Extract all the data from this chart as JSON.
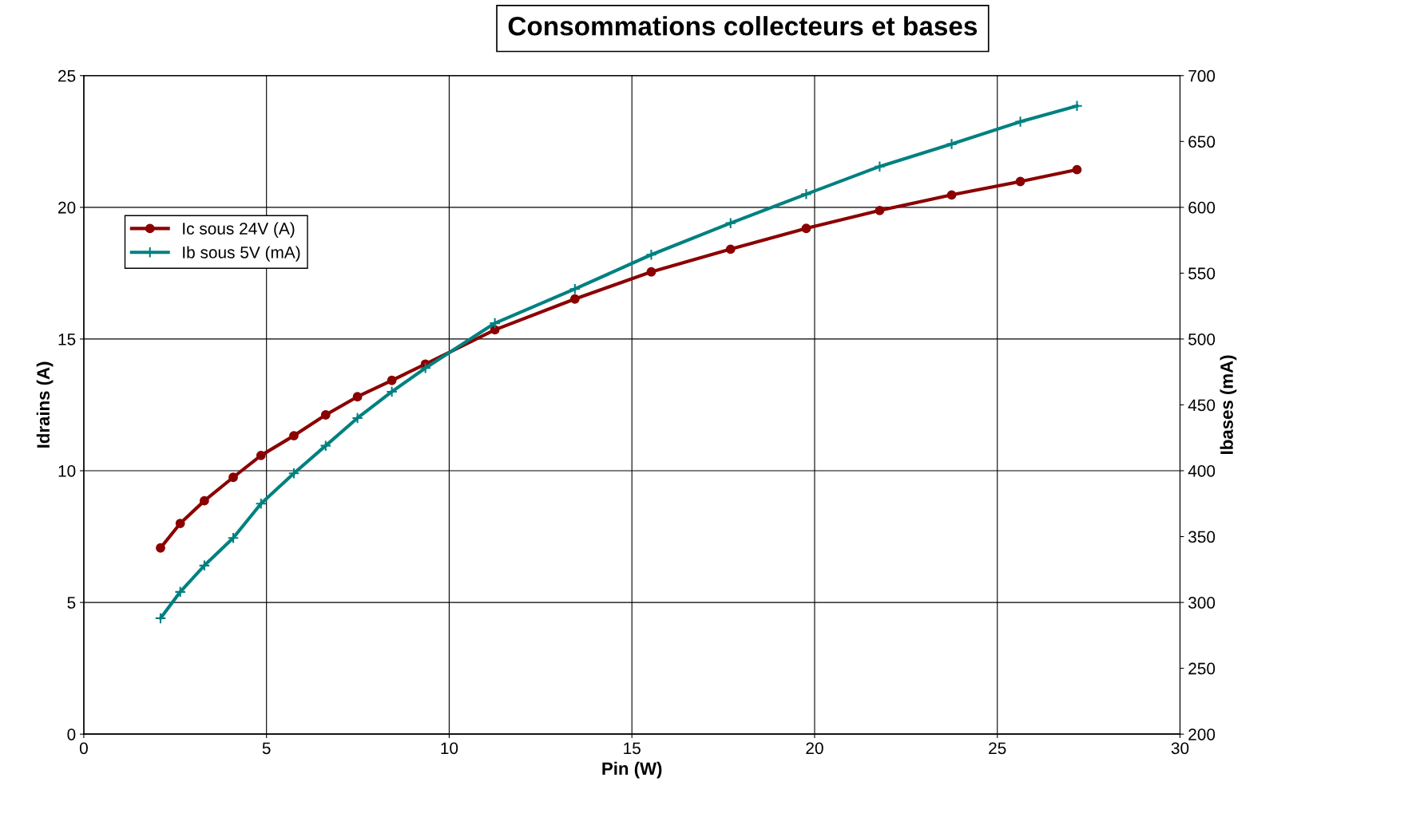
{
  "chart_data": {
    "type": "line",
    "title": "Consommations collecteurs et bases",
    "xlabel": "Pin (W)",
    "ylabel": "Idrains (A)",
    "y2label": "Ibases (mA)",
    "xlim": [
      0,
      30
    ],
    "xticks": [
      0,
      5,
      10,
      15,
      20,
      25,
      30
    ],
    "ylim": [
      0,
      25
    ],
    "yticks": [
      0,
      5,
      10,
      15,
      20,
      25
    ],
    "y2lim": [
      200,
      700
    ],
    "y2ticks": [
      200,
      250,
      300,
      350,
      400,
      450,
      500,
      550,
      600,
      650,
      700
    ],
    "grid": true,
    "legend": "upper left",
    "series": [
      {
        "name": "Ic sous 24V (A)",
        "color": "#8b0000",
        "marker": "circle",
        "x": [
          2.1,
          2.64,
          3.3,
          4.09,
          4.85,
          5.75,
          6.62,
          7.49,
          8.43,
          9.35,
          11.25,
          13.44,
          15.53,
          17.7,
          19.77,
          21.78,
          23.75,
          25.63,
          27.18
        ],
        "values": [
          7.07,
          8.0,
          8.86,
          9.75,
          10.58,
          11.33,
          12.12,
          12.81,
          13.43,
          14.05,
          15.35,
          16.52,
          17.55,
          18.41,
          19.2,
          19.88,
          20.47,
          20.98,
          21.43
        ]
      },
      {
        "name": "Ib sous 5V (mA)",
        "color": "#008080",
        "marker": "cross",
        "axis": "y2",
        "x": [
          2.1,
          2.64,
          3.3,
          4.09,
          4.85,
          5.75,
          6.62,
          7.49,
          8.43,
          9.35,
          11.25,
          13.44,
          15.53,
          17.7,
          19.77,
          21.78,
          23.75,
          25.63,
          27.18
        ],
        "values": [
          288,
          308,
          328,
          349,
          375,
          398,
          419,
          440,
          460,
          478,
          512,
          538,
          564,
          588,
          610,
          631,
          648,
          665,
          677
        ]
      }
    ]
  }
}
